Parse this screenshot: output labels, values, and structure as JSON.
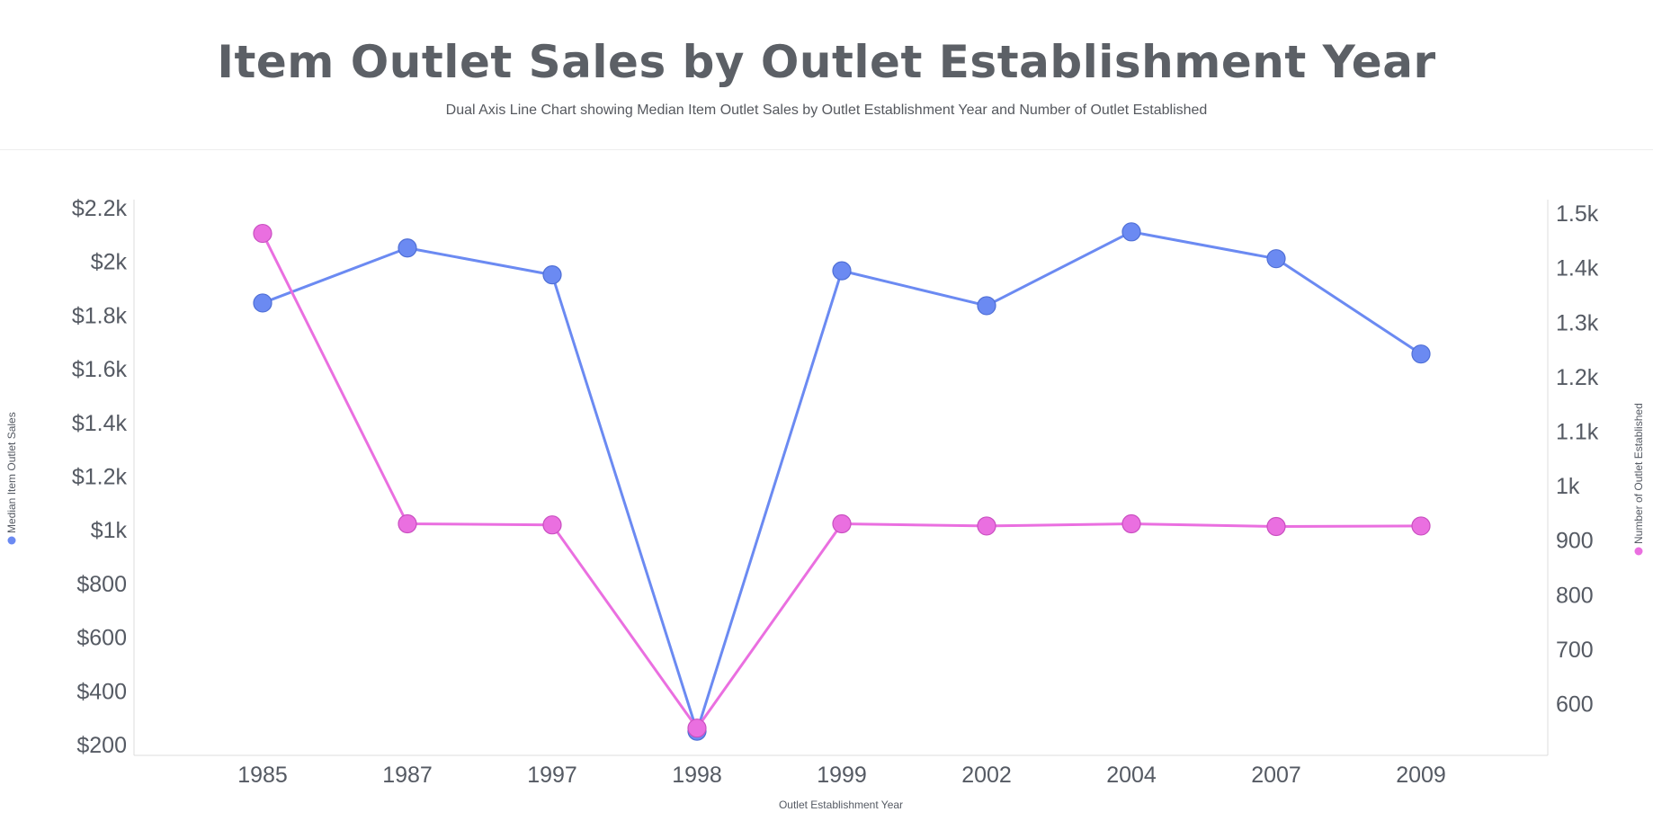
{
  "chart_data": {
    "type": "line",
    "title": "Item Outlet Sales by Outlet Establishment Year",
    "subtitle": "Dual Axis Line Chart showing Median Item Outlet Sales by Outlet Establishment Year and Number of Outlet Established",
    "xlabel": "Outlet Establishment Year",
    "ylabel_left": "Median Item Outlet Sales",
    "ylabel_right": "Number of Outlet Established",
    "categories": [
      "1985",
      "1987",
      "1997",
      "1998",
      "1999",
      "2002",
      "2004",
      "2007",
      "2009"
    ],
    "series": [
      {
        "name": "Median Item Outlet Sales",
        "axis": "left",
        "color": "#6b8af2",
        "values": [
          1845,
          2050,
          1950,
          250,
          1965,
          1835,
          2110,
          2010,
          1655
        ]
      },
      {
        "name": "Number of Outlet Established",
        "axis": "right",
        "color": "#ea6fe0",
        "values": [
          1463,
          930,
          928,
          555,
          930,
          926,
          930,
          925,
          926
        ]
      }
    ],
    "left_axis": {
      "ylim": [
        160,
        2230
      ],
      "ticks": [
        200,
        400,
        600,
        800,
        1000,
        1200,
        1400,
        1600,
        1800,
        2000,
        2200
      ],
      "tick_labels": [
        "$200",
        "$400",
        "$600",
        "$800",
        "$1k",
        "$1.2k",
        "$1.4k",
        "$1.6k",
        "$1.8k",
        "$2k",
        "$2.2k"
      ]
    },
    "right_axis": {
      "ylim": [
        505,
        1525
      ],
      "ticks": [
        600,
        700,
        800,
        900,
        1000,
        1100,
        1200,
        1300,
        1400,
        1500
      ],
      "tick_labels": [
        "600",
        "700",
        "800",
        "900",
        "1k",
        "1.1k",
        "1.2k",
        "1.3k",
        "1.4k",
        "1.5k"
      ]
    },
    "grid": false,
    "legend": "none"
  }
}
